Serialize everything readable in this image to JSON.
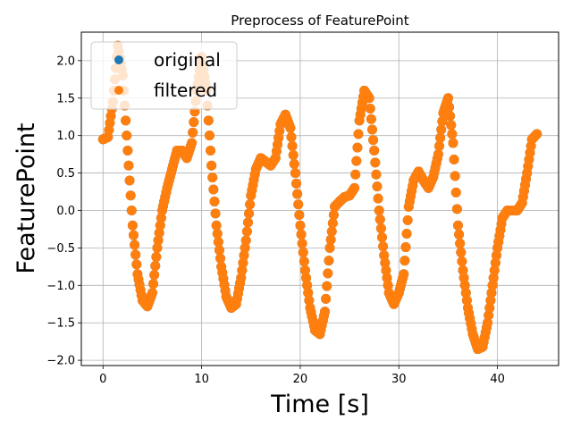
{
  "chart_data": {
    "type": "scatter",
    "title": "Preprocess of FeaturePoint",
    "xlabel": "Time [s]",
    "ylabel": "FeaturePoint",
    "xlim": [
      -2.2,
      46.2
    ],
    "ylim": [
      -2.07,
      2.38
    ],
    "xticks": [
      0,
      10,
      20,
      30,
      40
    ],
    "xtick_labels": [
      "0",
      "10",
      "20",
      "30",
      "40"
    ],
    "yticks": [
      -2.0,
      -1.5,
      -1.0,
      -0.5,
      0.0,
      0.5,
      1.0,
      1.5,
      2.0
    ],
    "ytick_labels": [
      "−2.0",
      "−1.5",
      "−1.0",
      "−0.5",
      "0.0",
      "0.5",
      "1.0",
      "1.5",
      "2.0"
    ],
    "grid": true,
    "legend_position": "top-left",
    "series": [
      {
        "name": "original",
        "color": "#1f77b4",
        "x": [
          0,
          0.5,
          1.0,
          1.5,
          2.0,
          2.5,
          3.0,
          3.5,
          4.0,
          4.5,
          5.0,
          5.5,
          6.0,
          6.5,
          7.0,
          7.5,
          8.0,
          8.5,
          9.0,
          9.5,
          10.0,
          10.5,
          11.0,
          11.5,
          12.0,
          12.5,
          13.0,
          13.5,
          14.0,
          14.5,
          15.0,
          15.5,
          16.0,
          16.5,
          17.0,
          17.5,
          18.0,
          18.5,
          19.0,
          19.5,
          20.0,
          20.5,
          21.0,
          21.5,
          22.0,
          22.5,
          23.0,
          23.5,
          24.0,
          24.5,
          25.0,
          25.5,
          26.0,
          26.5,
          27.0,
          27.5,
          28.0,
          28.5,
          29.0,
          29.5,
          30.0,
          30.5,
          31.0,
          31.5,
          32.0,
          32.5,
          33.0,
          33.5,
          34.0,
          34.5,
          35.0,
          35.5,
          36.0,
          36.5,
          37.0,
          37.5,
          38.0,
          38.5,
          39.0,
          39.5,
          40.0,
          40.5,
          41.0,
          41.5,
          42.0,
          42.5,
          43.0,
          43.5,
          44.0
        ],
        "y": [
          0.95,
          0.98,
          1.45,
          2.2,
          1.8,
          0.8,
          -0.2,
          -0.85,
          -1.2,
          -1.28,
          -1.1,
          -0.5,
          0.0,
          0.3,
          0.55,
          0.8,
          0.8,
          0.7,
          0.9,
          1.6,
          2.05,
          1.6,
          0.6,
          -0.2,
          -0.75,
          -1.15,
          -1.3,
          -1.25,
          -0.9,
          -0.4,
          0.2,
          0.55,
          0.7,
          0.65,
          0.6,
          0.7,
          1.15,
          1.28,
          1.1,
          0.5,
          -0.2,
          -0.8,
          -1.3,
          -1.6,
          -1.65,
          -1.35,
          -0.5,
          0.05,
          0.12,
          0.18,
          0.2,
          0.3,
          1.2,
          1.6,
          1.5,
          0.8,
          0.0,
          -0.6,
          -1.1,
          -1.25,
          -1.1,
          -0.85,
          0.05,
          0.4,
          0.52,
          0.4,
          0.3,
          0.45,
          0.75,
          1.3,
          1.5,
          0.9,
          -0.2,
          -0.8,
          -1.3,
          -1.65,
          -1.85,
          -1.82,
          -1.5,
          -1.0,
          -0.5,
          -0.1,
          0.0,
          0.0,
          0.0,
          0.1,
          0.5,
          0.95,
          1.02
        ]
      },
      {
        "name": "filtered",
        "color": "#ff7f0e",
        "x": [
          0,
          0.5,
          1.0,
          1.5,
          2.0,
          2.5,
          3.0,
          3.5,
          4.0,
          4.5,
          5.0,
          5.5,
          6.0,
          6.5,
          7.0,
          7.5,
          8.0,
          8.5,
          9.0,
          9.5,
          10.0,
          10.5,
          11.0,
          11.5,
          12.0,
          12.5,
          13.0,
          13.5,
          14.0,
          14.5,
          15.0,
          15.5,
          16.0,
          16.5,
          17.0,
          17.5,
          18.0,
          18.5,
          19.0,
          19.5,
          20.0,
          20.5,
          21.0,
          21.5,
          22.0,
          22.5,
          23.0,
          23.5,
          24.0,
          24.5,
          25.0,
          25.5,
          26.0,
          26.5,
          27.0,
          27.5,
          28.0,
          28.5,
          29.0,
          29.5,
          30.0,
          30.5,
          31.0,
          31.5,
          32.0,
          32.5,
          33.0,
          33.5,
          34.0,
          34.5,
          35.0,
          35.5,
          36.0,
          36.5,
          37.0,
          37.5,
          38.0,
          38.5,
          39.0,
          39.5,
          40.0,
          40.5,
          41.0,
          41.5,
          42.0,
          42.5,
          43.0,
          43.5,
          44.0
        ],
        "y": [
          0.95,
          0.98,
          1.45,
          2.2,
          1.8,
          0.8,
          -0.2,
          -0.85,
          -1.2,
          -1.28,
          -1.1,
          -0.5,
          0.0,
          0.3,
          0.55,
          0.8,
          0.8,
          0.7,
          0.9,
          1.6,
          2.05,
          1.6,
          0.6,
          -0.2,
          -0.75,
          -1.15,
          -1.3,
          -1.25,
          -0.9,
          -0.4,
          0.2,
          0.55,
          0.7,
          0.65,
          0.6,
          0.7,
          1.15,
          1.28,
          1.1,
          0.5,
          -0.2,
          -0.8,
          -1.3,
          -1.6,
          -1.65,
          -1.35,
          -0.5,
          0.05,
          0.12,
          0.18,
          0.2,
          0.3,
          1.2,
          1.6,
          1.5,
          0.8,
          0.0,
          -0.6,
          -1.1,
          -1.25,
          -1.1,
          -0.85,
          0.05,
          0.4,
          0.52,
          0.4,
          0.3,
          0.45,
          0.75,
          1.3,
          1.5,
          0.9,
          -0.2,
          -0.8,
          -1.3,
          -1.65,
          -1.85,
          -1.82,
          -1.5,
          -1.0,
          -0.5,
          -0.1,
          0.0,
          0.0,
          0.0,
          0.1,
          0.5,
          0.95,
          1.02
        ]
      }
    ]
  }
}
